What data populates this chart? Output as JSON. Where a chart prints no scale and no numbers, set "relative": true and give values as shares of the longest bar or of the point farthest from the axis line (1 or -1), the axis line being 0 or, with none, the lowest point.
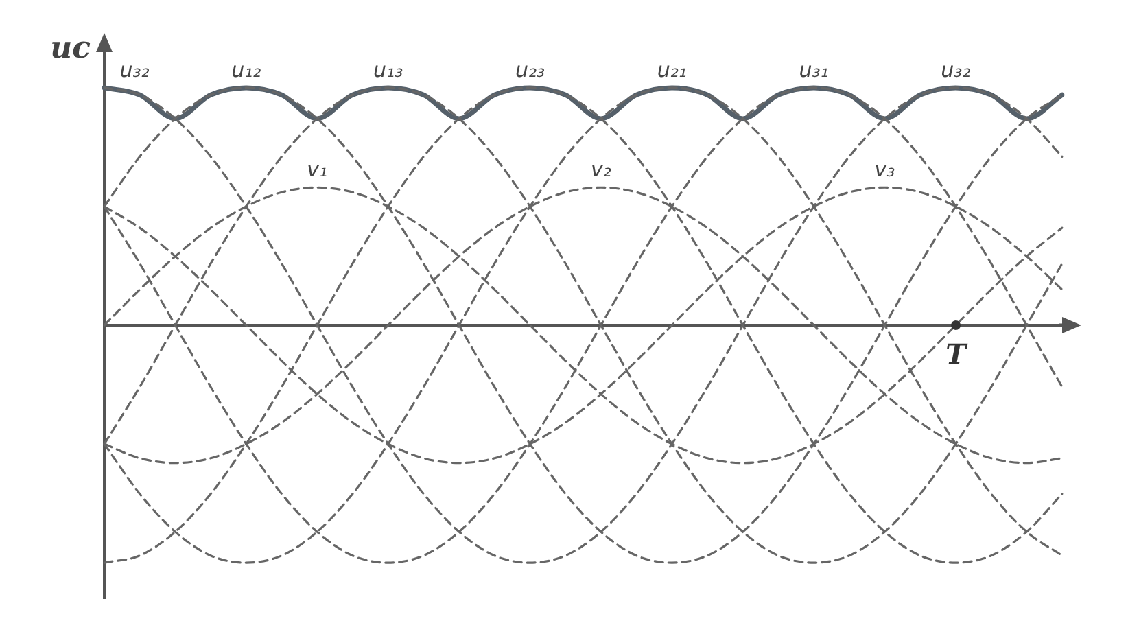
{
  "chart_data": {
    "type": "line",
    "relative": true,
    "ylabel": "uc",
    "marker": "none",
    "grid": false,
    "legend": false,
    "categories": [
      null,
      null,
      null,
      null,
      null,
      null,
      null,
      null,
      null,
      null,
      null,
      null,
      null,
      null,
      null,
      null,
      null,
      null,
      null,
      null,
      null,
      null,
      null,
      null,
      null,
      null,
      null,
      null
    ],
    "annotations": [
      "T"
    ],
    "series": [
      {
        "name": "u₃₂",
        "color": "#666666",
        "line_style": "dashed",
        "values": [
          1,
          0.97,
          0.87,
          0.71,
          0.5,
          0.26,
          0,
          -0.26,
          -0.5,
          -0.71,
          -0.87,
          -0.97,
          -1,
          -0.97,
          -0.87,
          -0.71,
          -0.5,
          -0.26,
          0,
          0.26,
          0.5,
          0.71,
          0.87,
          0.97,
          1,
          0.97,
          0.87,
          0.71
        ]
      },
      {
        "name": "u₁₂",
        "color": "#666666",
        "line_style": "dashed",
        "values": [
          0.5,
          0.71,
          0.87,
          0.97,
          1,
          0.97,
          0.87,
          0.71,
          0.5,
          0.26,
          0,
          -0.26,
          -0.5,
          -0.71,
          -0.87,
          -0.97,
          -1,
          -0.97,
          -0.87,
          -0.71,
          -0.5,
          -0.26,
          0,
          0.26,
          0.5,
          0.71,
          0.87,
          0.97
        ]
      },
      {
        "name": "u₁₃",
        "color": "#666666",
        "line_style": "dashed",
        "values": [
          -0.5,
          -0.26,
          0,
          0.26,
          0.5,
          0.71,
          0.87,
          0.97,
          1,
          0.97,
          0.87,
          0.71,
          0.5,
          0.26,
          0,
          -0.26,
          -0.5,
          -0.71,
          -0.87,
          -0.97,
          -1,
          -0.97,
          -0.87,
          -0.71,
          -0.5,
          -0.26,
          0,
          0.26
        ]
      },
      {
        "name": "u₂₃",
        "color": "#666666",
        "line_style": "dashed",
        "values": [
          -1,
          -0.97,
          -0.87,
          -0.71,
          -0.5,
          -0.26,
          0,
          0.26,
          0.5,
          0.71,
          0.87,
          0.97,
          1,
          0.97,
          0.87,
          0.71,
          0.5,
          0.26,
          0,
          -0.26,
          -0.5,
          -0.71,
          -0.87,
          -0.97,
          -1,
          -0.97,
          -0.87,
          -0.71
        ]
      },
      {
        "name": "u₂₁",
        "color": "#666666",
        "line_style": "dashed",
        "values": [
          -0.5,
          -0.71,
          -0.87,
          -0.97,
          -1,
          -0.97,
          -0.87,
          -0.71,
          -0.5,
          -0.26,
          0,
          0.26,
          0.5,
          0.71,
          0.87,
          0.97,
          1,
          0.97,
          0.87,
          0.71,
          0.5,
          0.26,
          0,
          -0.26,
          -0.5,
          -0.71,
          -0.87,
          -0.97
        ]
      },
      {
        "name": "u₃₁",
        "color": "#666666",
        "line_style": "dashed",
        "values": [
          0.5,
          0.26,
          0,
          -0.26,
          -0.5,
          -0.71,
          -0.87,
          -0.97,
          -1,
          -0.97,
          -0.87,
          -0.71,
          -0.5,
          -0.26,
          0,
          0.26,
          0.5,
          0.71,
          0.87,
          0.97,
          1,
          0.97,
          0.87,
          0.71,
          0.5,
          0.26,
          0,
          -0.26
        ]
      },
      {
        "name": "v₁",
        "color": "#666666",
        "line_style": "dashed",
        "values": [
          0,
          0.15,
          0.29,
          0.41,
          0.5,
          0.56,
          0.58,
          0.56,
          0.5,
          0.41,
          0.29,
          0.15,
          0,
          -0.15,
          -0.29,
          -0.41,
          -0.5,
          -0.56,
          -0.58,
          -0.56,
          -0.5,
          -0.41,
          -0.29,
          -0.15,
          0,
          0.15,
          0.29,
          0.41
        ]
      },
      {
        "name": "v₂",
        "color": "#666666",
        "line_style": "dashed",
        "values": [
          -0.5,
          -0.56,
          -0.58,
          -0.56,
          -0.5,
          -0.41,
          -0.29,
          -0.15,
          0,
          0.15,
          0.29,
          0.41,
          0.5,
          0.56,
          0.58,
          0.56,
          0.5,
          0.41,
          0.29,
          0.15,
          0,
          -0.15,
          -0.29,
          -0.41,
          -0.5,
          -0.56,
          -0.58,
          -0.56
        ]
      },
      {
        "name": "v₃",
        "color": "#666666",
        "line_style": "dashed",
        "values": [
          0.5,
          0.41,
          0.29,
          0.15,
          0,
          -0.15,
          -0.29,
          -0.41,
          -0.5,
          -0.56,
          -0.58,
          -0.56,
          -0.5,
          -0.41,
          -0.29,
          -0.15,
          0,
          0.15,
          0.29,
          0.41,
          0.5,
          0.56,
          0.58,
          0.56,
          0.5,
          0.41,
          0.29,
          0.15
        ]
      },
      {
        "color": "#55606a",
        "line_style": "solid",
        "values": [
          1,
          0.97,
          0.87,
          0.97,
          1,
          0.97,
          0.87,
          0.97,
          1,
          0.97,
          0.87,
          0.97,
          1,
          0.97,
          0.87,
          0.97,
          1,
          0.97,
          0.87,
          0.97,
          1,
          0.97,
          0.87,
          0.97,
          1,
          0.97,
          0.87,
          0.97
        ]
      }
    ]
  }
}
